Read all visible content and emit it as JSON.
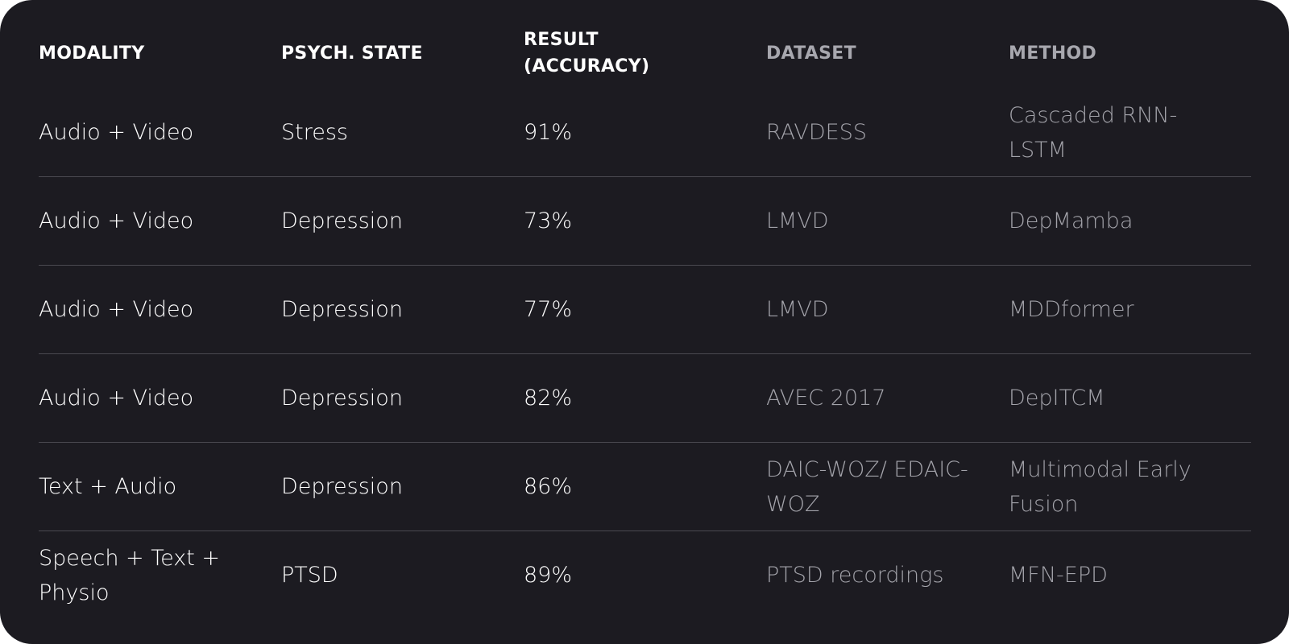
{
  "table": {
    "headers": [
      "MODALITY",
      "PSYCH. STATE",
      "RESULT (ACCURACY)",
      "DATASET",
      "METHOD"
    ],
    "rows": [
      [
        "Audio + Video",
        "Stress",
        "91%",
        "RAVDESS",
        "Cascaded RNN-LSTM"
      ],
      [
        "Audio + Video",
        "Depression",
        "73%",
        "LMVD",
        "DepMamba"
      ],
      [
        "Audio + Video",
        "Depression",
        "77%",
        "LMVD",
        "MDDformer"
      ],
      [
        "Audio + Video",
        "Depression",
        "82%",
        "AVEC 2017",
        "DepITCM"
      ],
      [
        "Text + Audio",
        "Depression",
        "86%",
        "DAIC-WOZ/ EDAIC-WOZ",
        "Multimodal Early Fusion"
      ],
      [
        "Speech + Text + Physio",
        "PTSD",
        "89%",
        "PTSD recordings",
        "MFN-EPD"
      ]
    ]
  }
}
